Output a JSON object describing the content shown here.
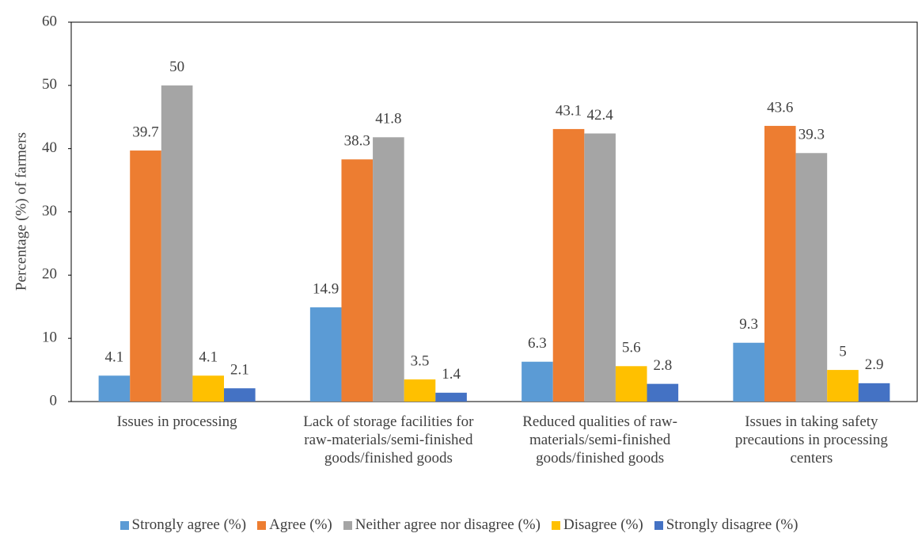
{
  "chart_data": {
    "type": "bar",
    "y_label": "Percentage (%) of farmers",
    "categories": [
      "Issues in processing",
      "Lack of storage facilities for raw-materials/semi-finished goods/finished goods",
      "Reduced qualities of raw-materials/semi-finished goods/finished goods",
      "Issues in taking safety precautions in processing centers"
    ],
    "series": [
      {
        "name": "Strongly agree (%)",
        "color": "#5b9bd5",
        "values": [
          4.1,
          14.9,
          6.3,
          9.3
        ]
      },
      {
        "name": "Agree (%)",
        "color": "#ed7d31",
        "values": [
          39.7,
          38.3,
          43.1,
          43.6
        ]
      },
      {
        "name": "Neither agree nor disagree (%)",
        "color": "#a5a5a5",
        "values": [
          50,
          41.8,
          42.4,
          39.3
        ]
      },
      {
        "name": "Disagree (%)",
        "color": "#ffc000",
        "values": [
          4.1,
          3.5,
          5.6,
          5
        ]
      },
      {
        "name": "Strongly disagree (%)",
        "color": "#4472c4",
        "values": [
          2.1,
          1.4,
          2.8,
          2.9
        ]
      }
    ],
    "ylim": [
      0,
      60
    ],
    "yticks": [
      0,
      10,
      20,
      30,
      40,
      50,
      60
    ],
    "legend": "bottom"
  }
}
